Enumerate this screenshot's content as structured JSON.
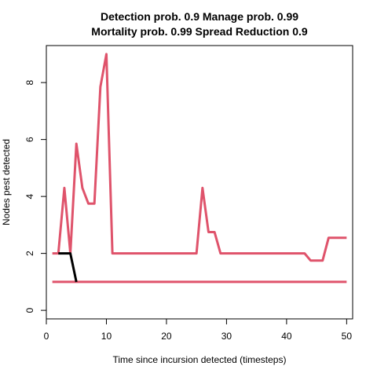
{
  "chart_data": {
    "type": "line",
    "title_line1": "Detection prob. 0.9 Manage prob. 0.99",
    "title_line2": "Mortality prob. 0.99 Spread Reduction 0.9",
    "xlabel": "Time since incursion detected (timesteps)",
    "ylabel": "Nodes pest detected",
    "xlim": [
      0,
      51
    ],
    "ylim": [
      -0.3,
      9.3
    ],
    "xticks": [
      0,
      10,
      20,
      30,
      40,
      50
    ],
    "yticks": [
      0,
      2,
      4,
      6,
      8
    ],
    "grid": false,
    "series": [
      {
        "color": "#DF536B",
        "x": [
          1,
          50
        ],
        "y": [
          1,
          1
        ]
      },
      {
        "color": "#DF536B",
        "x": [
          1,
          2,
          3,
          4,
          5,
          6,
          7,
          8,
          9,
          10,
          11,
          12,
          13,
          14,
          15,
          16,
          17,
          18,
          19,
          20,
          21,
          22,
          23,
          24,
          25,
          26,
          27,
          28,
          29,
          30,
          31,
          32,
          33,
          34,
          35,
          36,
          37,
          38,
          39,
          40,
          41,
          42,
          43,
          44,
          45,
          46,
          47,
          48,
          49,
          50
        ],
        "y": [
          2,
          2,
          4.3,
          2,
          5.85,
          4.3,
          3.75,
          3.75,
          7.85,
          9,
          2,
          2,
          2,
          2,
          2,
          2,
          2,
          2,
          2,
          2,
          2,
          2,
          2,
          2,
          2,
          4.3,
          2.75,
          2.75,
          2,
          2,
          2,
          2,
          2,
          2,
          2,
          2,
          2,
          2,
          2,
          2,
          2,
          2,
          2,
          1.75,
          1.75,
          1.75,
          2.55,
          2.55,
          2.55,
          2.55
        ]
      },
      {
        "color": "#000000",
        "x": [
          2,
          3,
          4,
          5
        ],
        "y": [
          2,
          2,
          2,
          1
        ]
      }
    ]
  }
}
